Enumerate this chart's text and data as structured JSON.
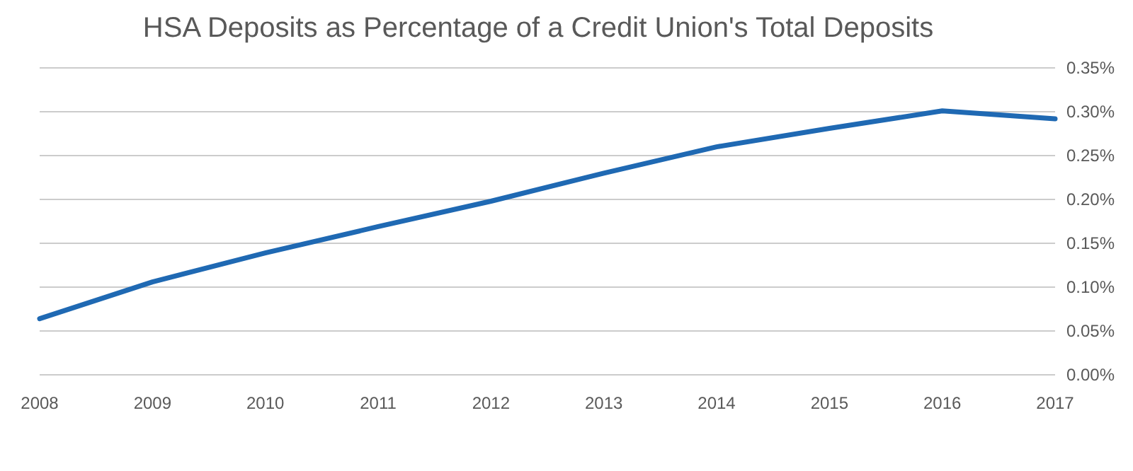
{
  "chart_data": {
    "type": "line",
    "title": "HSA Deposits as Percentage of a Credit Union's Total Deposits",
    "categories": [
      "2008",
      "2009",
      "2010",
      "2011",
      "2012",
      "2013",
      "2014",
      "2015",
      "2016",
      "2017"
    ],
    "series": [
      {
        "color": "#1f69b3",
        "values": [
          0.064,
          0.106,
          0.139,
          0.169,
          0.198,
          0.23,
          0.26,
          0.281,
          0.301,
          0.292
        ]
      }
    ],
    "ylim": [
      0,
      0.35
    ],
    "yticks": [
      {
        "value": 0,
        "label": "0.00%"
      },
      {
        "value": 0.05,
        "label": "0.05%"
      },
      {
        "value": 0.1,
        "label": "0.10%"
      },
      {
        "value": 0.15,
        "label": "0.15%"
      },
      {
        "value": 0.2,
        "label": "0.20%"
      },
      {
        "value": 0.25,
        "label": "0.25%"
      },
      {
        "value": 0.3,
        "label": "0.30%"
      },
      {
        "value": 0.35,
        "label": "0.35%"
      }
    ],
    "grid": "y",
    "marker": "none",
    "line_style": "solid"
  }
}
